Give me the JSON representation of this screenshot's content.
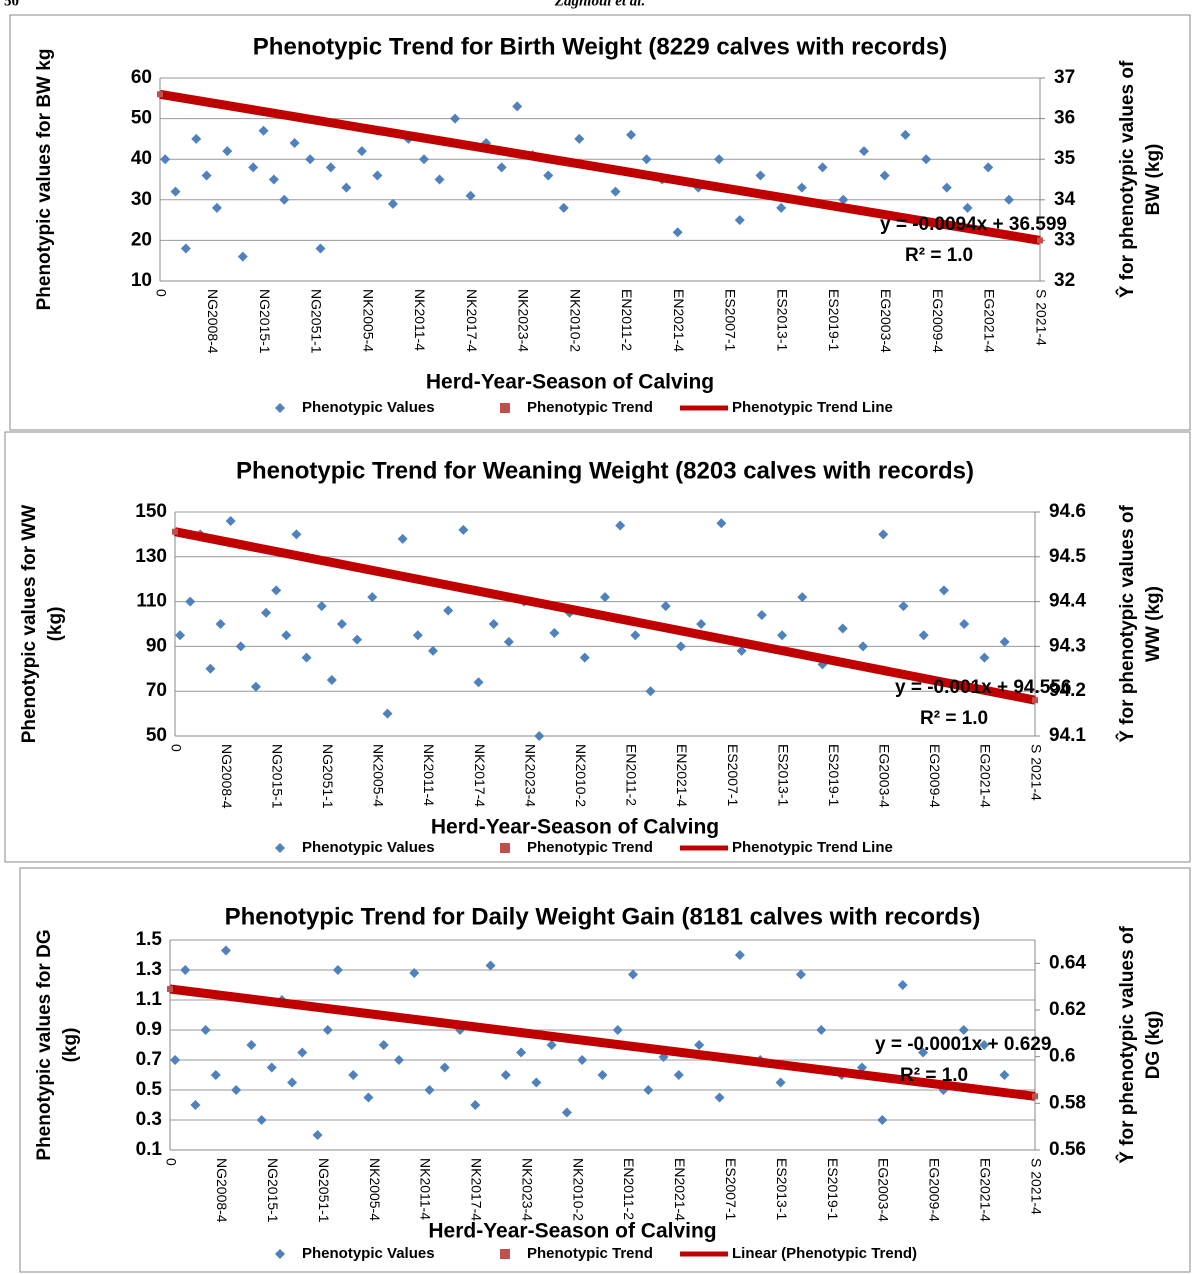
{
  "header": {
    "page": "50",
    "authors": "Zaghloul et al."
  },
  "chart_data": [
    {
      "type": "scatter",
      "title": "Phenotypic Trend for Birth Weight (8229 calves with records)",
      "xlabel": "Herd-Year-Season of Calving",
      "ylabel": [
        "Phenotypic values for BW kg"
      ],
      "y2label": [
        "Ŷ for phenotypic values of",
        "BW (kg)"
      ],
      "categories": [
        "0",
        "NG2008-4",
        "NG2015-1",
        "NG2051-1",
        "NK2005-4",
        "NK2011-4",
        "NK2017-4",
        "NK2023-4",
        "NK2010-2",
        "EN2011-2",
        "EN2021-4",
        "ES2007-1",
        "ES2013-1",
        "ES2019-1",
        "EG2003-4",
        "EG2009-4",
        "EG2021-4",
        "S 2021-4"
      ],
      "xlim": [
        0,
        17
      ],
      "ylim": [
        10,
        60
      ],
      "yticks": [
        10,
        20,
        30,
        40,
        50,
        60
      ],
      "y2lim": [
        32,
        37
      ],
      "y2ticks": [
        32,
        33,
        34,
        35,
        36,
        37
      ],
      "grid": true,
      "annotations": [
        "y = -0.0094x + 36.599",
        "R² = 1.0"
      ],
      "series": [
        {
          "name": "Phenotypic Values",
          "color": "#4f81bd",
          "x": [
            0.1,
            0.3,
            0.5,
            0.7,
            0.9,
            1.1,
            1.3,
            1.6,
            1.8,
            2.0,
            2.2,
            2.4,
            2.6,
            2.9,
            3.1,
            3.3,
            3.6,
            3.9,
            4.2,
            4.5,
            4.8,
            5.1,
            5.4,
            5.7,
            6.0,
            6.3,
            6.6,
            6.9,
            7.2,
            7.5,
            7.8,
            8.1,
            8.5,
            8.8,
            9.1,
            9.4,
            9.7,
            10.0,
            10.4,
            10.8,
            11.2,
            11.6,
            12.0,
            12.4,
            12.8,
            13.2,
            13.6,
            14.0,
            14.4,
            14.8,
            15.2,
            15.6,
            16.0,
            16.4
          ],
          "values": [
            40,
            32,
            18,
            45,
            36,
            28,
            42,
            16,
            38,
            47,
            35,
            30,
            44,
            40,
            18,
            38,
            33,
            42,
            36,
            29,
            45,
            40,
            35,
            50,
            31,
            44,
            38,
            53,
            41,
            36,
            28,
            45,
            38,
            32,
            46,
            40,
            35,
            22,
            33,
            40,
            25,
            36,
            28,
            33,
            38,
            30,
            42,
            36,
            46,
            40,
            33,
            28,
            38,
            30
          ]
        },
        {
          "name": "Phenotypic Trend",
          "color": "#c0504d",
          "axis": "y2",
          "x": [
            0,
            17
          ],
          "values": [
            36.599,
            33.0
          ]
        },
        {
          "name": "Phenotypic Trend Line",
          "color": "#c00000",
          "axis": "y2",
          "x": [
            0,
            17
          ],
          "values": [
            36.599,
            33.0
          ]
        }
      ]
    },
    {
      "type": "scatter",
      "title": "Phenotypic Trend for Weaning Weight (8203 calves with records)",
      "xlabel": "Herd-Year-Season of Calving",
      "ylabel": [
        "Phenotypic values for WW",
        "(kg)"
      ],
      "y2label": [
        "Ŷ for phenotypic values of",
        "WW (kg)"
      ],
      "categories": [
        "0",
        "NG2008-4",
        "NG2015-1",
        "NG2051-1",
        "NK2005-4",
        "NK2011-4",
        "NK2017-4",
        "NK2023-4",
        "NK2010-2",
        "EN2011-2",
        "EN2021-4",
        "ES2007-1",
        "ES2013-1",
        "ES2019-1",
        "EG2003-4",
        "EG2009-4",
        "EG2021-4",
        "S 2021-4"
      ],
      "xlim": [
        0,
        17
      ],
      "ylim": [
        50,
        150
      ],
      "yticks": [
        50,
        70,
        90,
        110,
        130,
        150
      ],
      "y2lim": [
        94.1,
        94.6
      ],
      "y2ticks": [
        94.1,
        94.2,
        94.3,
        94.4,
        94.5,
        94.6
      ],
      "grid": true,
      "annotations": [
        "y = -0.001x + 94.556",
        "R² = 1.0"
      ],
      "series": [
        {
          "name": "Phenotypic Values",
          "color": "#4f81bd",
          "x": [
            0.1,
            0.3,
            0.5,
            0.7,
            0.9,
            1.1,
            1.3,
            1.6,
            1.8,
            2.0,
            2.2,
            2.4,
            2.6,
            2.9,
            3.1,
            3.3,
            3.6,
            3.9,
            4.2,
            4.5,
            4.8,
            5.1,
            5.4,
            5.7,
            6.0,
            6.3,
            6.6,
            6.9,
            7.2,
            7.5,
            7.8,
            8.1,
            8.5,
            8.8,
            9.1,
            9.4,
            9.7,
            10.0,
            10.4,
            10.8,
            11.2,
            11.6,
            12.0,
            12.4,
            12.8,
            13.2,
            13.6,
            14.0,
            14.4,
            14.8,
            15.2,
            15.6,
            16.0,
            16.4
          ],
          "values": [
            95,
            110,
            140,
            80,
            100,
            146,
            90,
            72,
            105,
            115,
            95,
            140,
            85,
            108,
            75,
            100,
            93,
            112,
            60,
            138,
            95,
            88,
            106,
            142,
            74,
            100,
            92,
            110,
            50,
            96,
            105,
            85,
            112,
            144,
            95,
            70,
            108,
            90,
            100,
            145,
            88,
            104,
            95,
            112,
            82,
            98,
            90,
            140,
            108,
            95,
            115,
            100,
            85,
            92
          ]
        },
        {
          "name": "Phenotypic Trend",
          "color": "#c0504d",
          "axis": "y2",
          "x": [
            0,
            17
          ],
          "values": [
            94.556,
            94.18
          ]
        },
        {
          "name": "Phenotypic Trend Line",
          "color": "#c00000",
          "axis": "y2",
          "x": [
            0,
            17
          ],
          "values": [
            94.556,
            94.18
          ]
        }
      ]
    },
    {
      "type": "scatter",
      "title": "Phenotypic Trend for Daily Weight Gain (8181 calves with records)",
      "xlabel": "Herd-Year-Season of Calving",
      "ylabel": [
        "Phenotypic values for DG",
        "(kg)"
      ],
      "y2label": [
        "Ŷ for phenotypic values of",
        "DG (kg)"
      ],
      "categories": [
        "0",
        "NG2008-4",
        "NG2015-1",
        "NG2051-1",
        "NK2005-4",
        "NK2011-4",
        "NK2017-4",
        "NK2023-4",
        "NK2010-2",
        "EN2011-2",
        "EN2021-4",
        "ES2007-1",
        "ES2013-1",
        "ES2019-1",
        "EG2003-4",
        "EG2009-4",
        "EG2021-4",
        "S 2021-4"
      ],
      "xlim": [
        0,
        17
      ],
      "ylim": [
        0.1,
        1.5
      ],
      "yticks": [
        0.1,
        0.3,
        0.5,
        0.7,
        0.9,
        1.1,
        1.3,
        1.5
      ],
      "y2lim": [
        0.56,
        0.65
      ],
      "y2ticks": [
        0.56,
        0.58,
        0.6,
        0.62,
        0.64
      ],
      "grid": true,
      "annotations": [
        "y = -0.0001x + 0.629",
        "R² = 1.0"
      ],
      "series": [
        {
          "name": "Phenotypic Values",
          "color": "#4f81bd",
          "x": [
            0.1,
            0.3,
            0.5,
            0.7,
            0.9,
            1.1,
            1.3,
            1.6,
            1.8,
            2.0,
            2.2,
            2.4,
            2.6,
            2.9,
            3.1,
            3.3,
            3.6,
            3.9,
            4.2,
            4.5,
            4.8,
            5.1,
            5.4,
            5.7,
            6.0,
            6.3,
            6.6,
            6.9,
            7.2,
            7.5,
            7.8,
            8.1,
            8.5,
            8.8,
            9.1,
            9.4,
            9.7,
            10.0,
            10.4,
            10.8,
            11.2,
            11.6,
            12.0,
            12.4,
            12.8,
            13.2,
            13.6,
            14.0,
            14.4,
            14.8,
            15.2,
            15.6,
            16.0,
            16.4
          ],
          "values": [
            0.7,
            1.3,
            0.4,
            0.9,
            0.6,
            1.43,
            0.5,
            0.8,
            0.3,
            0.65,
            1.1,
            0.55,
            0.75,
            0.2,
            0.9,
            1.3,
            0.6,
            0.45,
            0.8,
            0.7,
            1.28,
            0.5,
            0.65,
            0.9,
            0.4,
            1.33,
            0.6,
            0.75,
            0.55,
            0.8,
            0.35,
            0.7,
            0.6,
            0.9,
            1.27,
            0.5,
            0.72,
            0.6,
            0.8,
            0.45,
            1.4,
            0.7,
            0.55,
            1.27,
            0.9,
            0.6,
            0.65,
            0.3,
            1.2,
            0.75,
            0.5,
            0.9,
            0.8,
            0.6
          ]
        },
        {
          "name": "Phenotypic Trend",
          "color": "#c0504d",
          "axis": "y2",
          "x": [
            0,
            17
          ],
          "values": [
            0.629,
            0.583
          ]
        },
        {
          "name": "Linear (Phenotypic Trend)",
          "color": "#c00000",
          "axis": "y2",
          "x": [
            0,
            17
          ],
          "values": [
            0.629,
            0.583
          ]
        }
      ]
    }
  ]
}
